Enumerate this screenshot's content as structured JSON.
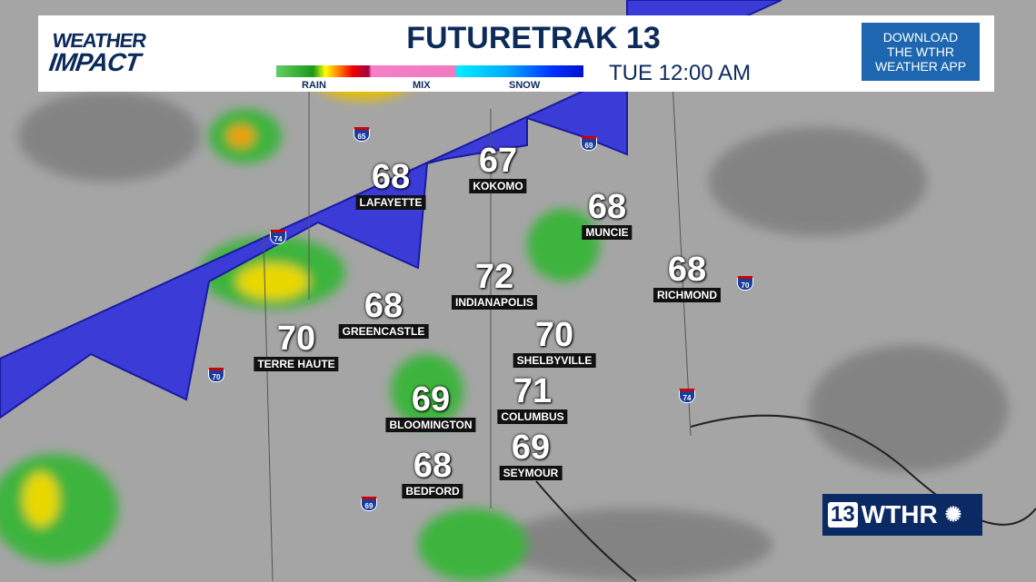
{
  "header": {
    "brand": [
      "WEATHER",
      "IMPACT"
    ],
    "title": "FUTURETRAK 13",
    "time": "TUE 12:00 AM",
    "legend": {
      "rain": "RAIN",
      "mix": "MIX",
      "snow": "SNOW"
    },
    "download": [
      "DOWNLOAD",
      "THE WTHR",
      "WEATHER APP"
    ]
  },
  "cities": [
    {
      "name": "LAFAYETTE",
      "temp": "68"
    },
    {
      "name": "KOKOMO",
      "temp": "67"
    },
    {
      "name": "MUNCIE",
      "temp": "68"
    },
    {
      "name": "INDIANAPOLIS",
      "temp": "72"
    },
    {
      "name": "RICHMOND",
      "temp": "68"
    },
    {
      "name": "GREENCASTLE",
      "temp": "68"
    },
    {
      "name": "TERRE HAUTE",
      "temp": "70"
    },
    {
      "name": "SHELBYVILLE",
      "temp": "70"
    },
    {
      "name": "COLUMBUS",
      "temp": "71"
    },
    {
      "name": "BLOOMINGTON",
      "temp": "69"
    },
    {
      "name": "SEYMOUR",
      "temp": "69"
    },
    {
      "name": "BEDFORD",
      "temp": "68"
    }
  ],
  "interstates": [
    "65",
    "69",
    "74",
    "70",
    "70",
    "74",
    "69"
  ],
  "station_logo": {
    "number": "13",
    "call": "WTHR"
  },
  "colors": {
    "front": "#3b3bd8",
    "rain": "#3cb43c",
    "navy": "#0c2a5a"
  }
}
